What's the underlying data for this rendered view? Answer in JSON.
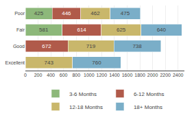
{
  "chart_data": {
    "type": "bar",
    "orientation": "horizontal",
    "stacked": true,
    "categories": [
      "Poor",
      "Fair",
      "Good",
      "Excellent"
    ],
    "series": [
      {
        "name": "3-6 Months",
        "color": "#8db87a",
        "values": [
          425,
          581,
          0,
          0
        ]
      },
      {
        "name": "6-12 Months",
        "color": "#b05a4a",
        "values": [
          446,
          614,
          672,
          0
        ]
      },
      {
        "name": "12-18 Months",
        "color": "#c9b76b",
        "values": [
          462,
          625,
          719,
          743
        ]
      },
      {
        "name": "18+ Months",
        "color": "#7aaec8",
        "values": [
          475,
          640,
          738,
          760
        ]
      }
    ],
    "xlim": [
      0,
      2500
    ],
    "xticks": [
      0,
      200,
      400,
      600,
      800,
      1000,
      1200,
      1400,
      1600,
      1800,
      2000,
      2200,
      2400
    ],
    "grid": true,
    "legend": "bottom",
    "data_labels": true
  }
}
